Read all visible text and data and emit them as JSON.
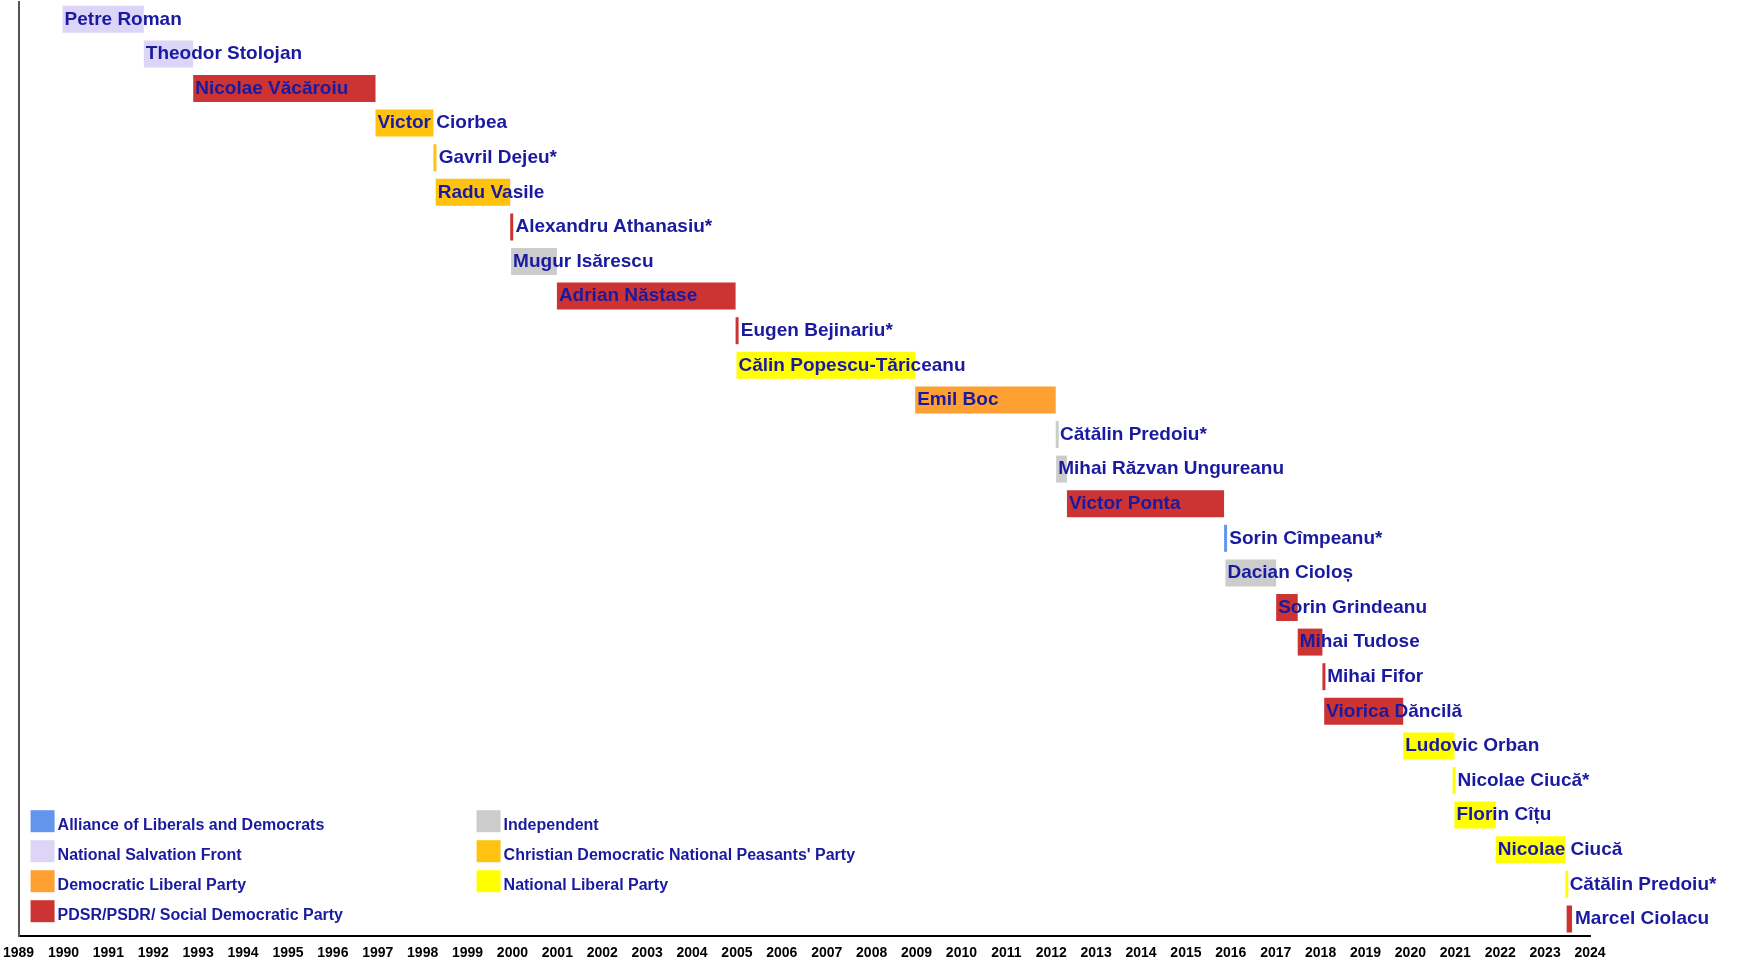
{
  "chart_data": {
    "type": "bar",
    "orientation": "horizontal",
    "legend": "bottom left",
    "tick_labels": "x",
    "grid": false,
    "categories": [
      "Petre Roman",
      "Theodor Stolojan",
      "Nicolae Văcăroiu",
      "Victor Ciorbea",
      "Gavril Dejeu*",
      "Radu Vasile",
      "Alexandru Athanasiu*",
      "Mugur Isărescu",
      "Adrian Năstase",
      "Eugen Bejinariu*",
      "Călin Popescu-Tăriceanu",
      "Emil Boc",
      "Cătălin Predoiu*",
      "Mihai Răzvan Ungureanu",
      "Victor Ponta",
      "Sorin Cîmpeanu*",
      "Dacian Cioloș",
      "Sorin Grindeanu",
      "Mihai Tudose",
      "Mihai Fifor",
      "Viorica Dăncilă",
      "Ludovic Orban",
      "Nicolae Ciucă*",
      "Florin Cîțu",
      "Nicolae Ciucă",
      "Cătălin Predoiu*",
      "Marcel Ciolacu"
    ],
    "series": [
      {
        "name": "Alliance of Liberals and Democrats",
        "color": "#6495ed",
        "values": [
          null,
          null,
          null,
          null,
          null,
          null,
          null,
          null,
          null,
          null,
          null,
          null,
          null,
          null,
          null,
          0.05,
          null,
          null,
          null,
          null,
          null,
          null,
          null,
          null,
          null,
          null,
          null
        ],
        "base": [
          null,
          null,
          null,
          null,
          null,
          null,
          null,
          null,
          null,
          null,
          null,
          null,
          null,
          null,
          null,
          2015.85,
          null,
          null,
          null,
          null,
          null,
          null,
          null,
          null,
          null,
          null,
          null
        ]
      },
      {
        "name": "National Salvation Front",
        "color": "#ddd5f8",
        "values": [
          1.81,
          1.1,
          null,
          null,
          null,
          null,
          null,
          null,
          null,
          null,
          null,
          null,
          null,
          null,
          null,
          null,
          null,
          null,
          null,
          null,
          null,
          null,
          null,
          null,
          null,
          null,
          null
        ],
        "base": [
          1989.98,
          1991.79,
          null,
          null,
          null,
          null,
          null,
          null,
          null,
          null,
          null,
          null,
          null,
          null,
          null,
          null,
          null,
          null,
          null,
          null,
          null,
          null,
          null,
          null,
          null,
          null,
          null
        ]
      },
      {
        "name": "Democratic Liberal Party",
        "color": "#ffa033",
        "values": [
          null,
          null,
          null,
          null,
          null,
          null,
          null,
          null,
          null,
          null,
          null,
          3.13,
          null,
          null,
          null,
          null,
          null,
          null,
          null,
          null,
          null,
          null,
          null,
          null,
          null,
          null,
          null
        ],
        "base": [
          null,
          null,
          null,
          null,
          null,
          null,
          null,
          null,
          null,
          null,
          null,
          2008.97,
          null,
          null,
          null,
          null,
          null,
          null,
          null,
          null,
          null,
          null,
          null,
          null,
          null,
          null,
          null
        ]
      },
      {
        "name": "PDSR/PSDR/ Social Democratic Party",
        "color": "#cc3333",
        "values": [
          null,
          null,
          4.06,
          null,
          null,
          null,
          0.05,
          null,
          3.98,
          0.05,
          null,
          null,
          null,
          null,
          3.5,
          null,
          null,
          0.48,
          0.55,
          0.04,
          1.76,
          null,
          null,
          null,
          null,
          null,
          0.12
        ],
        "base": [
          null,
          null,
          1992.89,
          null,
          null,
          null,
          1999.95,
          null,
          2000.99,
          2004.97,
          null,
          null,
          null,
          null,
          2012.35,
          null,
          null,
          2017.01,
          2017.49,
          2018.04,
          2018.08,
          null,
          null,
          null,
          null,
          null,
          2023.48
        ]
      },
      {
        "name": "Independent",
        "color": "#cccccc",
        "values": [
          null,
          null,
          null,
          null,
          null,
          null,
          null,
          1.02,
          null,
          null,
          null,
          null,
          0.03,
          0.24,
          null,
          null,
          1.13,
          null,
          null,
          null,
          null,
          null,
          null,
          null,
          null,
          null,
          null
        ],
        "base": [
          null,
          null,
          null,
          null,
          null,
          null,
          null,
          1999.97,
          null,
          null,
          null,
          null,
          2012.1,
          2012.11,
          null,
          null,
          2015.88,
          null,
          null,
          null,
          null,
          null,
          null,
          null,
          null,
          null,
          null
        ]
      },
      {
        "name": "Christian Democratic National Peasants' Party",
        "color": "#ffc20e",
        "values": [
          null,
          null,
          null,
          1.29,
          0.05,
          1.66,
          null,
          null,
          null,
          null,
          null,
          null,
          null,
          null,
          null,
          null,
          null,
          null,
          null,
          null,
          null,
          null,
          null,
          null,
          null,
          null,
          null
        ],
        "base": [
          null,
          null,
          null,
          1996.95,
          1998.24,
          1998.29,
          null,
          null,
          null,
          null,
          null,
          null,
          null,
          null,
          null,
          null,
          null,
          null,
          null,
          null,
          null,
          null,
          null,
          null,
          null,
          null,
          null
        ]
      },
      {
        "name": "National Liberal Party",
        "color": "#ffff00",
        "values": [
          null,
          null,
          null,
          null,
          null,
          null,
          null,
          null,
          null,
          null,
          3.98,
          null,
          null,
          null,
          null,
          null,
          null,
          null,
          null,
          null,
          null,
          1.14,
          0.04,
          0.92,
          1.55,
          0.03,
          null
        ],
        "base": [
          null,
          null,
          null,
          null,
          null,
          null,
          null,
          null,
          null,
          null,
          2004.99,
          null,
          null,
          null,
          null,
          null,
          null,
          null,
          null,
          null,
          null,
          2019.84,
          2020.94,
          2020.98,
          2021.9,
          2023.45,
          null
        ]
      }
    ],
    "xlim": [
      1989,
      2024
    ],
    "xticks": [
      1989,
      1990,
      1991,
      1992,
      1993,
      1994,
      1995,
      1996,
      1997,
      1998,
      1999,
      2000,
      2001,
      2002,
      2003,
      2004,
      2005,
      2006,
      2007,
      2008,
      2009,
      2010,
      2011,
      2012,
      2013,
      2014,
      2015,
      2016,
      2017,
      2018,
      2019,
      2020,
      2021,
      2022,
      2023,
      2024
    ]
  }
}
